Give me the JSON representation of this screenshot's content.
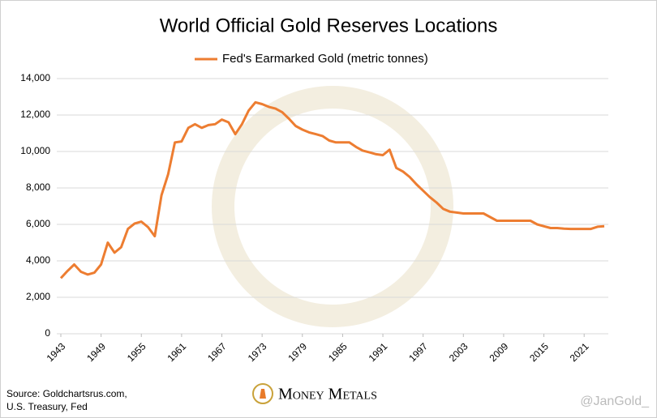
{
  "chart_data": {
    "type": "line",
    "title": "World Official Gold Reserves Locations",
    "x": [
      1943,
      1944,
      1945,
      1946,
      1947,
      1948,
      1949,
      1950,
      1951,
      1952,
      1953,
      1954,
      1955,
      1956,
      1957,
      1958,
      1959,
      1960,
      1961,
      1962,
      1963,
      1964,
      1965,
      1966,
      1967,
      1968,
      1969,
      1970,
      1971,
      1972,
      1973,
      1974,
      1975,
      1976,
      1977,
      1978,
      1979,
      1980,
      1981,
      1982,
      1983,
      1984,
      1985,
      1986,
      1987,
      1988,
      1989,
      1990,
      1991,
      1992,
      1993,
      1994,
      1995,
      1996,
      1997,
      1998,
      1999,
      2000,
      2001,
      2002,
      2003,
      2004,
      2005,
      2006,
      2007,
      2008,
      2009,
      2010,
      2011,
      2012,
      2013,
      2014,
      2015,
      2016,
      2017,
      2018,
      2019,
      2020,
      2021,
      2022,
      2023,
      2024
    ],
    "series": [
      {
        "name": "Fed's Earmarked Gold (metric tonnes)",
        "color": "#ed7d31",
        "values": [
          3050,
          3450,
          3800,
          3400,
          3250,
          3350,
          3800,
          5000,
          4450,
          4750,
          5750,
          6050,
          6150,
          5850,
          5350,
          7600,
          8750,
          10500,
          10550,
          11300,
          11500,
          11300,
          11450,
          11500,
          11750,
          11600,
          10950,
          11500,
          12250,
          12700,
          12600,
          12450,
          12350,
          12150,
          11800,
          11400,
          11200,
          11050,
          10950,
          10850,
          10600,
          10500,
          10500,
          10500,
          10250,
          10050,
          9950,
          9850,
          9800,
          10100,
          9100,
          8900,
          8600,
          8200,
          7850,
          7500,
          7200,
          6850,
          6700,
          6650,
          6600,
          6600,
          6600,
          6600,
          6400,
          6200,
          6200,
          6200,
          6200,
          6200,
          6200,
          6000,
          5900,
          5800,
          5800,
          5770,
          5750,
          5750,
          5750,
          5750,
          5870,
          5900
        ]
      }
    ],
    "xlim": [
      1943,
      2024
    ],
    "xticks": [
      1943,
      1949,
      1955,
      1961,
      1967,
      1973,
      1979,
      1985,
      1991,
      1997,
      2003,
      2009,
      2015,
      2021
    ],
    "ylim": [
      0,
      14000
    ],
    "yticks": [
      0,
      {
        "value": 2000,
        "label": "2,000"
      },
      {
        "value": 4000,
        "label": "4,000"
      },
      {
        "value": 6000,
        "label": "6,000"
      },
      {
        "value": 8000,
        "label": "8,000"
      },
      {
        "value": 10000,
        "label": "10,000"
      },
      {
        "value": 12000,
        "label": "12,000"
      },
      {
        "value": 14000,
        "label": "14,000"
      }
    ],
    "grid": true,
    "legend": "top",
    "source": [
      "Source: Goldchartsrus.com,",
      "U.S. Treasury, Fed"
    ],
    "logo": "Money Metals",
    "handle": "@JanGold_"
  }
}
